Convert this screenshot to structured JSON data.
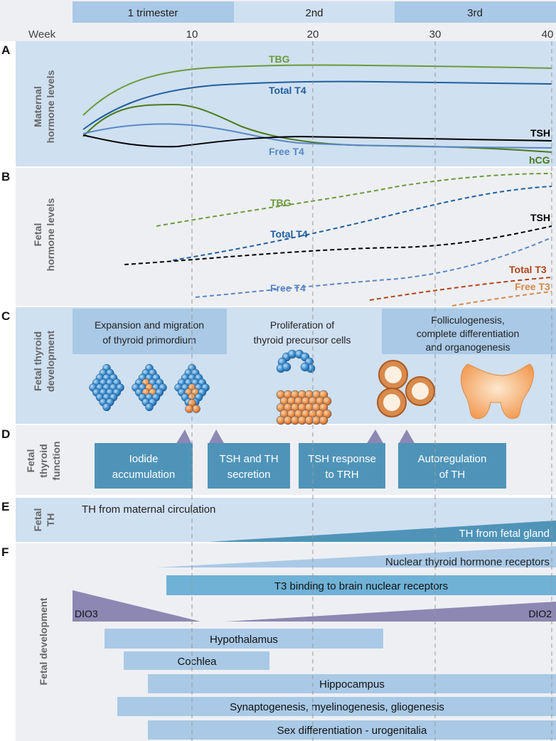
{
  "trimesters": [
    "1 trimester",
    "2nd",
    "3rd"
  ],
  "week_label": "Week",
  "week_ticks": [
    "10",
    "20",
    "30",
    "40"
  ],
  "colors": {
    "band_blue": "#cfe0f1",
    "band_grey": "#eeeff3",
    "tbg": "#6a9a3a",
    "total_t4": "#1f5f9e",
    "free_t4": "#5b87c5",
    "tsh": "#000000",
    "hcg": "#4a7a1a",
    "total_t3": "#b0441a",
    "free_t3": "#d4894a",
    "teal_box": "#4f94b8",
    "purple": "#8d87b3"
  },
  "panels": {
    "A": {
      "letter": "A",
      "label_line1": "Maternal",
      "label_line2": "hormone levels",
      "curves": {
        "tbg": "TBG",
        "total_t4": "Total T4",
        "tsh": "TSH",
        "free_t4": "Free T4",
        "hcg": "hCG"
      }
    },
    "B": {
      "letter": "B",
      "label_line1": "Fetal",
      "label_line2": "hormone levels",
      "curves": {
        "tbg": "TBG",
        "total_t4": "Total T4",
        "tsh": "TSH",
        "free_t4": "Free T4",
        "total_t3": "Total T3",
        "free_t3": "Free T3"
      }
    },
    "C": {
      "letter": "C",
      "label_line1": "Fetal thyroid",
      "label_line2": "development",
      "stages": [
        {
          "line1": "Expansion and migration",
          "line2": "of thyroid primordium",
          "line3": ""
        },
        {
          "line1": "Proliferation of",
          "line2": "thyroid precursor cells",
          "line3": ""
        },
        {
          "line1": "Folliculogenesis,",
          "line2": "complete differentiation",
          "line3": "and organogenesis"
        }
      ]
    },
    "D": {
      "letter": "D",
      "label_line1": "Fetal",
      "label_line2": "thyroid",
      "label_line3": "function",
      "boxes": [
        {
          "line1": "Iodide",
          "line2": "accumulation"
        },
        {
          "line1": "TSH and TH",
          "line2": "secretion"
        },
        {
          "line1": "TSH response",
          "line2": "to TRH"
        },
        {
          "line1": "Autoregulation",
          "line2": "of TH"
        }
      ]
    },
    "E": {
      "letter": "E",
      "label_line1": "Fetal",
      "label_line2": "TH",
      "maternal": "TH from maternal circulation",
      "fetal": "TH from fetal gland"
    },
    "F": {
      "letter": "F",
      "label": "Fetal development",
      "bars": {
        "nuclear_receptors": "Nuclear thyroid hormone receptors",
        "t3_binding": "T3 binding to brain nuclear receptors",
        "dio3": "DIO3",
        "dio2": "DIO2",
        "hypothalamus": "Hypothalamus",
        "cochlea": "Cochlea",
        "hippocampus": "Hippocampus",
        "synaptogenesis": "Synaptogenesis, myelinogenesis, gliogenesis",
        "sex_diff": "Sex differentiation - urogenitalia"
      }
    }
  }
}
